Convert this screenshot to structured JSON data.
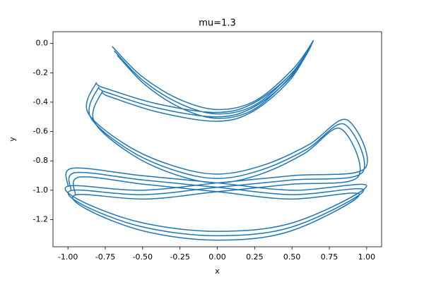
{
  "chart_data": {
    "type": "line",
    "title": "mu=1.3",
    "x_label": "x",
    "y_label": "y",
    "xlim": [
      -1.1,
      1.1
    ],
    "ylim": [
      -1.385,
      0.08
    ],
    "xticks": [
      {
        "value": -1,
        "label": "-1.00"
      },
      {
        "value": -0.75,
        "label": "-0.75"
      },
      {
        "value": -0.5,
        "label": "-0.50"
      },
      {
        "value": -0.25,
        "label": "-0.25"
      },
      {
        "value": 0,
        "label": "0.00"
      },
      {
        "value": 0.25,
        "label": "0.25"
      },
      {
        "value": 0.5,
        "label": "0.50"
      },
      {
        "value": 0.75,
        "label": "0.75"
      },
      {
        "value": 1,
        "label": "1.00"
      }
    ],
    "yticks": [
      {
        "value": 0,
        "label": "0.0"
      },
      -0.2,
      -0.4,
      -0.6,
      -0.8,
      {
        "value": -1,
        "label": "-1.0"
      },
      -1.2
    ],
    "grid": false,
    "series": [
      {
        "color": "#1f77b4",
        "x": [
          -0.69,
          -0.5,
          -0.25,
          0,
          0.25,
          0.5,
          0.63,
          0.5,
          0.25,
          0,
          -0.4,
          -0.75,
          -0.8,
          -0.85,
          -0.6,
          -0.3,
          0,
          0.3,
          0.6,
          0.85,
          0.97,
          0.5,
          0,
          -0.5,
          -0.97,
          -0.9,
          -0.5,
          0,
          0.5,
          0.98,
          0.5,
          0,
          -0.5,
          -0.95,
          -0.98,
          null,
          -0.67,
          -0.485,
          -0.243,
          0,
          0.243,
          0.485,
          0.611,
          0.485,
          0.243,
          0,
          -0.388,
          -0.728,
          -0.776,
          -0.825,
          -0.582,
          -0.291,
          0,
          0.291,
          0.582,
          0.825,
          0.941,
          0.485,
          0,
          -0.485,
          -0.941,
          -0.873,
          -0.485,
          0,
          0.485,
          0.951,
          0.485,
          0,
          -0.485,
          -0.922,
          -0.951,
          null,
          -0.704,
          -0.51,
          -0.255,
          0,
          0.255,
          0.51,
          0.643,
          0.51,
          0.255,
          0,
          -0.408,
          -0.765,
          -0.816,
          -0.867,
          -0.612,
          -0.306,
          0,
          0.306,
          0.612,
          0.867,
          0.989,
          0.51,
          0,
          -0.51,
          -0.989,
          -0.918,
          -0.51,
          0,
          0.51,
          1.0,
          0.51,
          0,
          -0.51,
          -0.969,
          -1.0
        ],
        "values": [
          -0.05,
          -0.25,
          -0.41,
          -0.48,
          -0.42,
          -0.2,
          -0.01,
          -0.22,
          -0.43,
          -0.5,
          -0.44,
          -0.33,
          -0.31,
          -0.5,
          -0.72,
          -0.86,
          -0.92,
          -0.86,
          -0.72,
          -0.55,
          -0.88,
          -0.93,
          -0.98,
          -1.03,
          -1.0,
          -1.1,
          -1.25,
          -1.31,
          -1.25,
          -1.0,
          -1.03,
          -0.98,
          -0.93,
          -0.88,
          -1.0,
          null,
          -0.08,
          -0.28,
          -0.44,
          -0.51,
          -0.45,
          -0.23,
          -0.04,
          -0.25,
          -0.46,
          -0.53,
          -0.47,
          -0.36,
          -0.34,
          -0.53,
          -0.75,
          -0.89,
          -0.95,
          -0.89,
          -0.75,
          -0.58,
          -0.91,
          -0.96,
          -1.01,
          -1.06,
          -1.03,
          -1.13,
          -1.28,
          -1.34,
          -1.28,
          -1.03,
          -1.06,
          -1.01,
          -0.96,
          -0.91,
          -1.03,
          null,
          -0.02,
          -0.22,
          -0.38,
          -0.45,
          -0.39,
          -0.17,
          0.02,
          -0.19,
          -0.4,
          -0.47,
          -0.41,
          -0.3,
          -0.28,
          -0.47,
          -0.69,
          -0.83,
          -0.89,
          -0.83,
          -0.69,
          -0.52,
          -0.85,
          -0.9,
          -0.95,
          -1.0,
          -0.97,
          -1.07,
          -1.22,
          -1.28,
          -1.22,
          -0.97,
          -1.0,
          -0.95,
          -0.9,
          -0.85,
          -0.97
        ]
      }
    ]
  }
}
